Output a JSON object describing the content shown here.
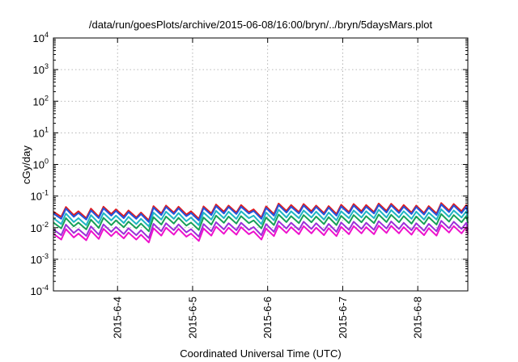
{
  "chart_data": {
    "type": "line",
    "title": "/data/run/goesPlots/archive/2015-06-08/16:00/bryn/../bryn/5daysMars.plot",
    "xlabel": "Coordinated Universal Time (UTC)",
    "ylabel": "cGy/day",
    "yscale": "log",
    "grid": true,
    "xlim": [
      "2015-06-03T03:30",
      "2015-06-08T16:00"
    ],
    "ylim": [
      0.0001,
      10000
    ],
    "x_ticks": [
      {
        "value": "2015-06-04T00:00",
        "label": "2015-6-4"
      },
      {
        "value": "2015-06-05T00:00",
        "label": "2015-6-5"
      },
      {
        "value": "2015-06-06T00:00",
        "label": "2015-6-6"
      },
      {
        "value": "2015-06-07T00:00",
        "label": "2015-6-7"
      },
      {
        "value": "2015-06-08T00:00",
        "label": "2015-6-8"
      }
    ],
    "y_ticks": [
      {
        "value": 0.0001,
        "base": "10",
        "exp": "-4"
      },
      {
        "value": 0.001,
        "base": "10",
        "exp": "-3"
      },
      {
        "value": 0.01,
        "base": "10",
        "exp": "-2"
      },
      {
        "value": 0.1,
        "base": "10",
        "exp": "-1"
      },
      {
        "value": 1,
        "base": "10",
        "exp": "0"
      },
      {
        "value": 10,
        "base": "10",
        "exp": "1"
      },
      {
        "value": 100,
        "base": "10",
        "exp": "2"
      },
      {
        "value": 1000,
        "base": "10",
        "exp": "3"
      },
      {
        "value": 10000,
        "base": "10",
        "exp": "4"
      }
    ],
    "x": [
      "2015-06-03T03:30",
      "2015-06-03T06:00",
      "2015-06-03T07:30",
      "2015-06-03T10:00",
      "2015-06-03T11:30",
      "2015-06-03T14:00",
      "2015-06-03T15:30",
      "2015-06-03T18:00",
      "2015-06-03T19:30",
      "2015-06-03T22:00",
      "2015-06-03T23:30",
      "2015-06-04T02:00",
      "2015-06-04T03:30",
      "2015-06-04T06:00",
      "2015-06-04T07:30",
      "2015-06-04T10:00",
      "2015-06-04T11:30",
      "2015-06-04T14:00",
      "2015-06-04T15:30",
      "2015-06-04T18:00",
      "2015-06-04T19:30",
      "2015-06-04T22:00",
      "2015-06-04T23:30",
      "2015-06-05T02:00",
      "2015-06-05T03:30",
      "2015-06-05T06:00",
      "2015-06-05T07:30",
      "2015-06-05T10:00",
      "2015-06-05T11:30",
      "2015-06-05T14:00",
      "2015-06-05T15:30",
      "2015-06-05T18:00",
      "2015-06-05T19:30",
      "2015-06-05T22:00",
      "2015-06-05T23:30",
      "2015-06-06T02:00",
      "2015-06-06T03:30",
      "2015-06-06T06:00",
      "2015-06-06T07:30",
      "2015-06-06T10:00",
      "2015-06-06T11:30",
      "2015-06-06T14:00",
      "2015-06-06T15:30",
      "2015-06-06T18:00",
      "2015-06-06T19:30",
      "2015-06-06T22:00",
      "2015-06-06T23:30",
      "2015-06-07T02:00",
      "2015-06-07T03:30",
      "2015-06-07T06:00",
      "2015-06-07T07:30",
      "2015-06-07T10:00",
      "2015-06-07T11:30",
      "2015-06-07T14:00",
      "2015-06-07T15:30",
      "2015-06-07T18:00",
      "2015-06-07T19:30",
      "2015-06-07T22:00",
      "2015-06-07T23:30",
      "2015-06-08T02:00",
      "2015-06-08T03:30",
      "2015-06-08T06:00",
      "2015-06-08T07:30",
      "2015-06-08T10:00",
      "2015-06-08T11:30",
      "2015-06-08T14:00",
      "2015-06-08T15:30",
      "2015-06-08T16:00"
    ],
    "series": [
      {
        "color": "#e41a1c",
        "values": [
          0.032,
          0.022,
          0.045,
          0.025,
          0.033,
          0.02,
          0.04,
          0.022,
          0.046,
          0.027,
          0.038,
          0.023,
          0.035,
          0.021,
          0.03,
          0.017,
          0.048,
          0.028,
          0.05,
          0.03,
          0.046,
          0.026,
          0.033,
          0.019,
          0.047,
          0.028,
          0.054,
          0.032,
          0.05,
          0.03,
          0.052,
          0.031,
          0.038,
          0.021,
          0.047,
          0.027,
          0.058,
          0.034,
          0.052,
          0.031,
          0.056,
          0.033,
          0.05,
          0.029,
          0.048,
          0.027,
          0.053,
          0.031,
          0.056,
          0.033,
          0.052,
          0.031,
          0.058,
          0.034,
          0.057,
          0.033,
          0.052,
          0.03,
          0.05,
          0.029,
          0.048,
          0.028,
          0.06,
          0.035,
          0.056,
          0.033,
          0.052,
          0.032
        ]
      },
      {
        "color": "#2255dd",
        "values": [
          0.028,
          0.019,
          0.04,
          0.022,
          0.029,
          0.018,
          0.035,
          0.02,
          0.041,
          0.024,
          0.034,
          0.02,
          0.031,
          0.019,
          0.027,
          0.015,
          0.043,
          0.025,
          0.045,
          0.027,
          0.041,
          0.023,
          0.029,
          0.017,
          0.042,
          0.025,
          0.048,
          0.028,
          0.045,
          0.027,
          0.046,
          0.028,
          0.034,
          0.019,
          0.042,
          0.024,
          0.052,
          0.03,
          0.046,
          0.028,
          0.05,
          0.029,
          0.045,
          0.026,
          0.043,
          0.024,
          0.047,
          0.028,
          0.05,
          0.029,
          0.046,
          0.028,
          0.052,
          0.03,
          0.051,
          0.029,
          0.046,
          0.027,
          0.045,
          0.026,
          0.043,
          0.025,
          0.054,
          0.031,
          0.05,
          0.029,
          0.046,
          0.028
        ]
      },
      {
        "color": "#1fb5c4",
        "values": [
          0.02,
          0.013,
          0.028,
          0.015,
          0.02,
          0.012,
          0.025,
          0.014,
          0.029,
          0.017,
          0.024,
          0.014,
          0.022,
          0.013,
          0.019,
          0.011,
          0.03,
          0.018,
          0.032,
          0.019,
          0.029,
          0.016,
          0.021,
          0.012,
          0.03,
          0.018,
          0.034,
          0.02,
          0.032,
          0.019,
          0.033,
          0.02,
          0.024,
          0.013,
          0.03,
          0.017,
          0.037,
          0.021,
          0.033,
          0.02,
          0.035,
          0.021,
          0.032,
          0.018,
          0.03,
          0.017,
          0.033,
          0.02,
          0.035,
          0.021,
          0.033,
          0.02,
          0.037,
          0.021,
          0.036,
          0.021,
          0.033,
          0.019,
          0.032,
          0.018,
          0.03,
          0.018,
          0.038,
          0.022,
          0.035,
          0.021,
          0.033,
          0.02
        ]
      },
      {
        "color": "#18a058",
        "values": [
          0.0145,
          0.0095,
          0.02,
          0.011,
          0.0145,
          0.0088,
          0.018,
          0.0098,
          0.0205,
          0.012,
          0.017,
          0.0103,
          0.0155,
          0.0095,
          0.0135,
          0.0077,
          0.0215,
          0.0125,
          0.0225,
          0.0135,
          0.0205,
          0.0116,
          0.0145,
          0.0085,
          0.021,
          0.0125,
          0.024,
          0.0142,
          0.0225,
          0.0135,
          0.0232,
          0.0139,
          0.017,
          0.0095,
          0.021,
          0.0121,
          0.026,
          0.015,
          0.0232,
          0.0139,
          0.025,
          0.0148,
          0.0225,
          0.013,
          0.0215,
          0.0121,
          0.0236,
          0.0139,
          0.025,
          0.0148,
          0.0232,
          0.0139,
          0.026,
          0.015,
          0.0255,
          0.0148,
          0.0232,
          0.0134,
          0.0225,
          0.013,
          0.0215,
          0.0125,
          0.027,
          0.0155,
          0.025,
          0.0148,
          0.0232,
          0.0142
        ]
      },
      {
        "color": "#9b30d9",
        "values": [
          0.0088,
          0.0058,
          0.0124,
          0.0068,
          0.009,
          0.0055,
          0.011,
          0.006,
          0.0127,
          0.0074,
          0.0105,
          0.0063,
          0.0096,
          0.0058,
          0.0083,
          0.0047,
          0.0132,
          0.0077,
          0.0138,
          0.0083,
          0.0127,
          0.0071,
          0.009,
          0.0052,
          0.013,
          0.0077,
          0.0149,
          0.0088,
          0.0138,
          0.0083,
          0.0143,
          0.0085,
          0.0105,
          0.0058,
          0.013,
          0.0074,
          0.016,
          0.0094,
          0.0143,
          0.0085,
          0.0154,
          0.0091,
          0.0138,
          0.008,
          0.0132,
          0.0074,
          0.0146,
          0.0085,
          0.0154,
          0.0091,
          0.0143,
          0.0085,
          0.016,
          0.0094,
          0.0157,
          0.0091,
          0.0143,
          0.0083,
          0.0138,
          0.008,
          0.0132,
          0.0077,
          0.0165,
          0.0096,
          0.0154,
          0.0091,
          0.0143,
          0.0088
        ]
      },
      {
        "color": "#ee11cc",
        "values": [
          0.0064,
          0.0042,
          0.009,
          0.0049,
          0.0065,
          0.004,
          0.008,
          0.0044,
          0.0092,
          0.0054,
          0.0076,
          0.0046,
          0.007,
          0.0042,
          0.006,
          0.0034,
          0.0096,
          0.0056,
          0.01,
          0.006,
          0.0092,
          0.0052,
          0.0065,
          0.0038,
          0.0094,
          0.0056,
          0.0108,
          0.0064,
          0.01,
          0.006,
          0.0104,
          0.0062,
          0.0076,
          0.0042,
          0.0094,
          0.0054,
          0.0116,
          0.0068,
          0.0104,
          0.0062,
          0.0112,
          0.0066,
          0.01,
          0.0058,
          0.0096,
          0.0054,
          0.0106,
          0.0062,
          0.0112,
          0.0066,
          0.0104,
          0.0062,
          0.0116,
          0.0068,
          0.0114,
          0.0066,
          0.0104,
          0.006,
          0.01,
          0.0058,
          0.0096,
          0.0056,
          0.012,
          0.007,
          0.0112,
          0.0066,
          0.0104,
          0.0064
        ]
      }
    ]
  }
}
